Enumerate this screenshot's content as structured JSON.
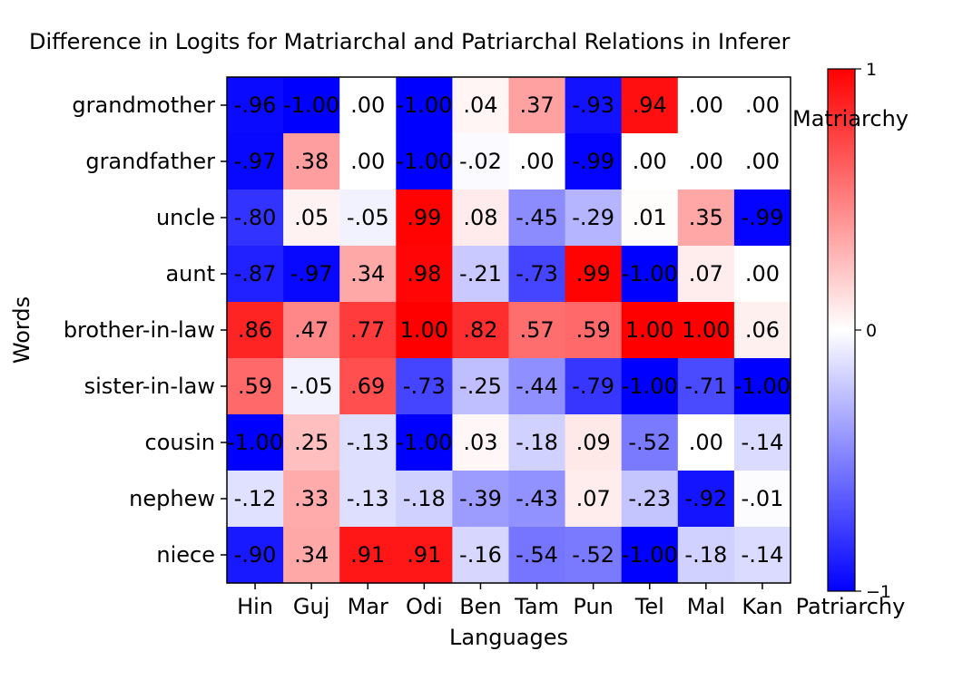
{
  "chart_data": {
    "type": "heatmap",
    "title": "Difference in Logits for Matriarchal and Patriarchal Relations in Inferer",
    "xlabel": "Languages",
    "ylabel": "Words",
    "x_categories": [
      "Hin",
      "Guj",
      "Mar",
      "Odi",
      "Ben",
      "Tam",
      "Pun",
      "Tel",
      "Mal",
      "Kan"
    ],
    "y_categories": [
      "grandmother",
      "grandfather",
      "uncle",
      "aunt",
      "brother-in-law",
      "sister-in-law",
      "cousin",
      "nephew",
      "niece"
    ],
    "values": [
      [
        -0.96,
        -1.0,
        0.0,
        -1.0,
        0.04,
        0.37,
        -0.93,
        0.94,
        0.0,
        0.0
      ],
      [
        -0.97,
        0.38,
        0.0,
        -1.0,
        -0.02,
        0.0,
        -0.99,
        0.0,
        0.0,
        0.0
      ],
      [
        -0.8,
        0.05,
        -0.05,
        0.99,
        0.08,
        -0.45,
        -0.29,
        0.01,
        0.35,
        -0.99
      ],
      [
        -0.87,
        -0.97,
        0.34,
        0.98,
        -0.21,
        -0.73,
        0.99,
        -1.0,
        0.07,
        0.0
      ],
      [
        0.86,
        0.47,
        0.77,
        1.0,
        0.82,
        0.57,
        0.59,
        1.0,
        1.0,
        0.06
      ],
      [
        0.59,
        -0.05,
        0.69,
        -0.73,
        -0.25,
        -0.44,
        -0.79,
        -1.0,
        -0.71,
        -1.0
      ],
      [
        -1.0,
        0.25,
        -0.13,
        -1.0,
        0.03,
        -0.18,
        0.09,
        -0.52,
        0.0,
        -0.14
      ],
      [
        -0.12,
        0.33,
        -0.13,
        -0.18,
        -0.39,
        -0.43,
        0.07,
        -0.23,
        -0.92,
        -0.01
      ],
      [
        -0.9,
        0.34,
        0.91,
        0.91,
        -0.16,
        -0.54,
        -0.52,
        -1.0,
        -0.18,
        -0.14
      ]
    ],
    "colormap": "bwr",
    "vmin": -1,
    "vmax": 1,
    "colorbar": {
      "ticks": [
        "1",
        "0",
        "−1"
      ],
      "top_label": "Matriarchy",
      "bottom_label": "Patriarchy"
    },
    "colors": {
      "negative": "#0000ff",
      "neutral": "#ffffff",
      "positive": "#ff0000"
    }
  }
}
